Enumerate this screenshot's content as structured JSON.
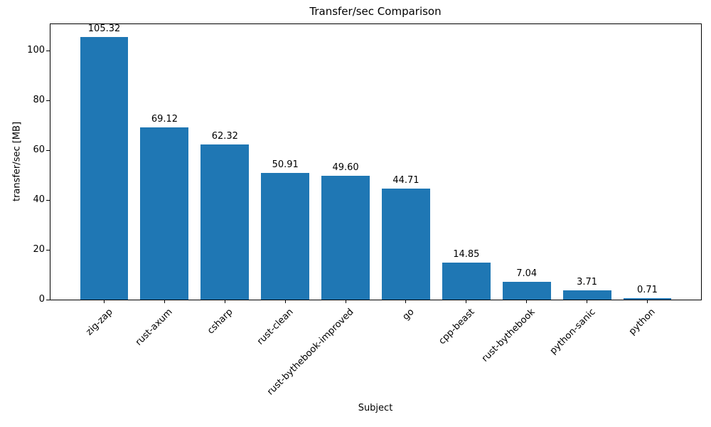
{
  "chart_data": {
    "type": "bar",
    "title": "Transfer/sec Comparison",
    "xlabel": "Subject",
    "ylabel": "transfer/sec [MB]",
    "categories": [
      "zig-zap",
      "rust-axum",
      "csharp",
      "rust-clean",
      "rust-bythebook-improved",
      "go",
      "cpp-beast",
      "rust-bythebook",
      "python-sanic",
      "python"
    ],
    "values": [
      105.32,
      69.12,
      62.32,
      50.91,
      49.6,
      44.71,
      14.85,
      7.04,
      3.71,
      0.71
    ],
    "value_labels": [
      "105.32",
      "69.12",
      "62.32",
      "50.91",
      "49.60",
      "44.71",
      "14.85",
      "7.04",
      "3.71",
      "0.71"
    ],
    "yticks": [
      0,
      20,
      40,
      60,
      80,
      100
    ],
    "ylim": [
      0,
      110.59
    ],
    "xlim": [
      -0.89,
      9.89
    ],
    "bar_width_units": 0.8,
    "bar_color": "#1f77b4",
    "text_color": "#000000",
    "grid": false,
    "legend_position": "none",
    "xtick_rotation_deg": 45
  }
}
